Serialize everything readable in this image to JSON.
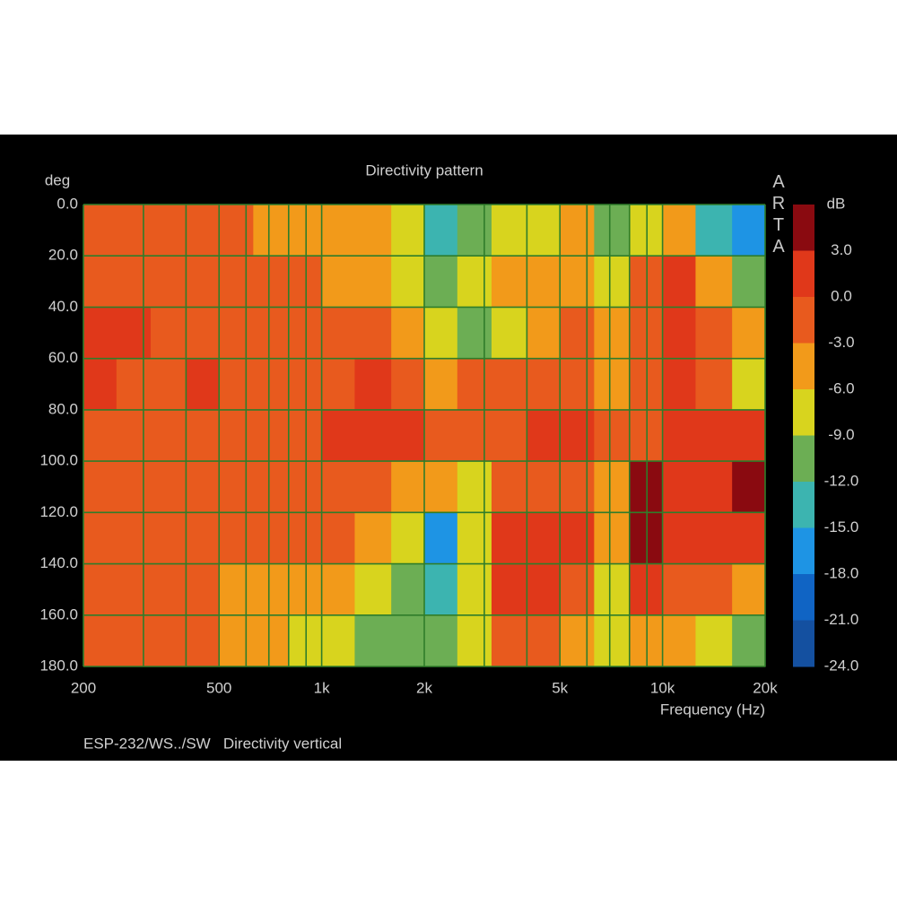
{
  "chart_data": {
    "type": "heatmap",
    "title": "Directivity pattern",
    "y_label": "deg",
    "x_label": "Frequency (Hz)",
    "footer": "ESP-232/WS../SW   Directivity vertical",
    "watermark": "ARTA",
    "log_x": true,
    "y_inverted": true,
    "grid": true,
    "xlim": [
      200,
      20000
    ],
    "xticks": [
      200,
      500,
      {
        "value": 1000,
        "label": "1k"
      },
      {
        "value": 2000,
        "label": "2k"
      },
      {
        "value": 5000,
        "label": "5k"
      },
      {
        "value": 10000,
        "label": "10k"
      },
      {
        "value": 20000,
        "label": "20k"
      }
    ],
    "xminor": [
      300,
      400,
      600,
      700,
      800,
      900,
      3000,
      4000,
      6000,
      7000,
      8000,
      9000
    ],
    "ylim": [
      0,
      180
    ],
    "yticks": [
      {
        "value": 0,
        "label": "0.0"
      },
      {
        "value": 20,
        "label": "20.0"
      },
      {
        "value": 40,
        "label": "40.0"
      },
      {
        "value": 60,
        "label": "60.0"
      },
      {
        "value": 80,
        "label": "80.0"
      },
      {
        "value": 100,
        "label": "100.0"
      },
      {
        "value": 120,
        "label": "120.0"
      },
      {
        "value": 140,
        "label": "140.0"
      },
      {
        "value": 160,
        "label": "160.0"
      },
      {
        "value": 180,
        "label": "180.0"
      }
    ],
    "colorbar_label": "dB",
    "zlim": [
      -24,
      6
    ],
    "zticks": [
      {
        "value": 3,
        "label": "3.0"
      },
      {
        "value": 0,
        "label": "0.0"
      },
      {
        "value": -3,
        "label": "-3.0"
      },
      {
        "value": -6,
        "label": "-6.0"
      },
      {
        "value": -9,
        "label": "-9.0"
      },
      {
        "value": -12,
        "label": "-12.0"
      },
      {
        "value": -15,
        "label": "-15.0"
      },
      {
        "value": -18,
        "label": "-18.0"
      },
      {
        "value": -21,
        "label": "-21.0"
      },
      {
        "value": -24,
        "label": "-24.0"
      }
    ],
    "colors": [
      "#8a0a10",
      "#e0381a",
      "#e85a1e",
      "#f29a1a",
      "#d8d41e",
      "#6cae54",
      "#3cb4b0",
      "#1e94e4",
      "#1064c4",
      "#1450a0"
    ],
    "x_edges": [
      200,
      250,
      315,
      400,
      500,
      630,
      800,
      1000,
      1250,
      1600,
      2000,
      2500,
      3150,
      4000,
      5000,
      6300,
      8000,
      10000,
      12500,
      16000,
      20000
    ],
    "y_edges": [
      0,
      20,
      40,
      60,
      80,
      100,
      120,
      140,
      160,
      180
    ],
    "z": [
      [
        -1.5,
        -1.5,
        -1.5,
        -1.5,
        -1.5,
        -4.5,
        -4.5,
        -4.5,
        -4.5,
        -7.5,
        -13.5,
        -10.5,
        -7.5,
        -7.5,
        -4.5,
        -10.5,
        -7.5,
        -4.5,
        -13.5,
        -16.5
      ],
      [
        -1.5,
        -1.5,
        -1.5,
        -1.5,
        -1.5,
        -1.5,
        -1.5,
        -4.5,
        -4.5,
        -7.5,
        -10.5,
        -7.5,
        -4.5,
        -4.5,
        -4.5,
        -7.5,
        -1.5,
        1.5,
        -4.5,
        -10.5
      ],
      [
        1.5,
        1.5,
        -1.5,
        -1.5,
        -1.5,
        -1.5,
        -1.5,
        -1.5,
        -1.5,
        -4.5,
        -7.5,
        -10.5,
        -7.5,
        -4.5,
        -1.5,
        -4.5,
        -1.5,
        1.5,
        -1.5,
        -4.5
      ],
      [
        1.5,
        -1.5,
        -1.5,
        1.5,
        -1.5,
        -1.5,
        -1.5,
        -1.5,
        1.5,
        -1.5,
        -4.5,
        -1.5,
        -1.5,
        -1.5,
        -1.5,
        -4.5,
        -1.5,
        1.5,
        -1.5,
        -7.5
      ],
      [
        -1.5,
        -1.5,
        -1.5,
        -1.5,
        -1.5,
        -1.5,
        -1.5,
        1.5,
        1.5,
        1.5,
        -1.5,
        -1.5,
        -1.5,
        1.5,
        1.5,
        -1.5,
        -1.5,
        1.5,
        1.5,
        1.5
      ],
      [
        -1.5,
        -1.5,
        -1.5,
        -1.5,
        -1.5,
        -1.5,
        -1.5,
        -1.5,
        -1.5,
        -4.5,
        -4.5,
        -7.5,
        -1.5,
        -1.5,
        -1.5,
        -4.5,
        4.5,
        1.5,
        1.5,
        4.5
      ],
      [
        -1.5,
        -1.5,
        -1.5,
        -1.5,
        -1.5,
        -1.5,
        -1.5,
        -1.5,
        -4.5,
        -7.5,
        -16.5,
        -7.5,
        1.5,
        1.5,
        1.5,
        -4.5,
        4.5,
        1.5,
        1.5,
        1.5
      ],
      [
        -1.5,
        -1.5,
        -1.5,
        -1.5,
        -4.5,
        -4.5,
        -4.5,
        -4.5,
        -7.5,
        -10.5,
        -13.5,
        -7.5,
        1.5,
        1.5,
        -1.5,
        -7.5,
        1.5,
        -1.5,
        -1.5,
        -4.5
      ],
      [
        -1.5,
        -1.5,
        -1.5,
        -1.5,
        -4.5,
        -4.5,
        -7.5,
        -7.5,
        -10.5,
        -10.5,
        -10.5,
        -7.5,
        -1.5,
        -1.5,
        -4.5,
        -7.5,
        -4.5,
        -4.5,
        -7.5,
        -10.5
      ]
    ]
  }
}
